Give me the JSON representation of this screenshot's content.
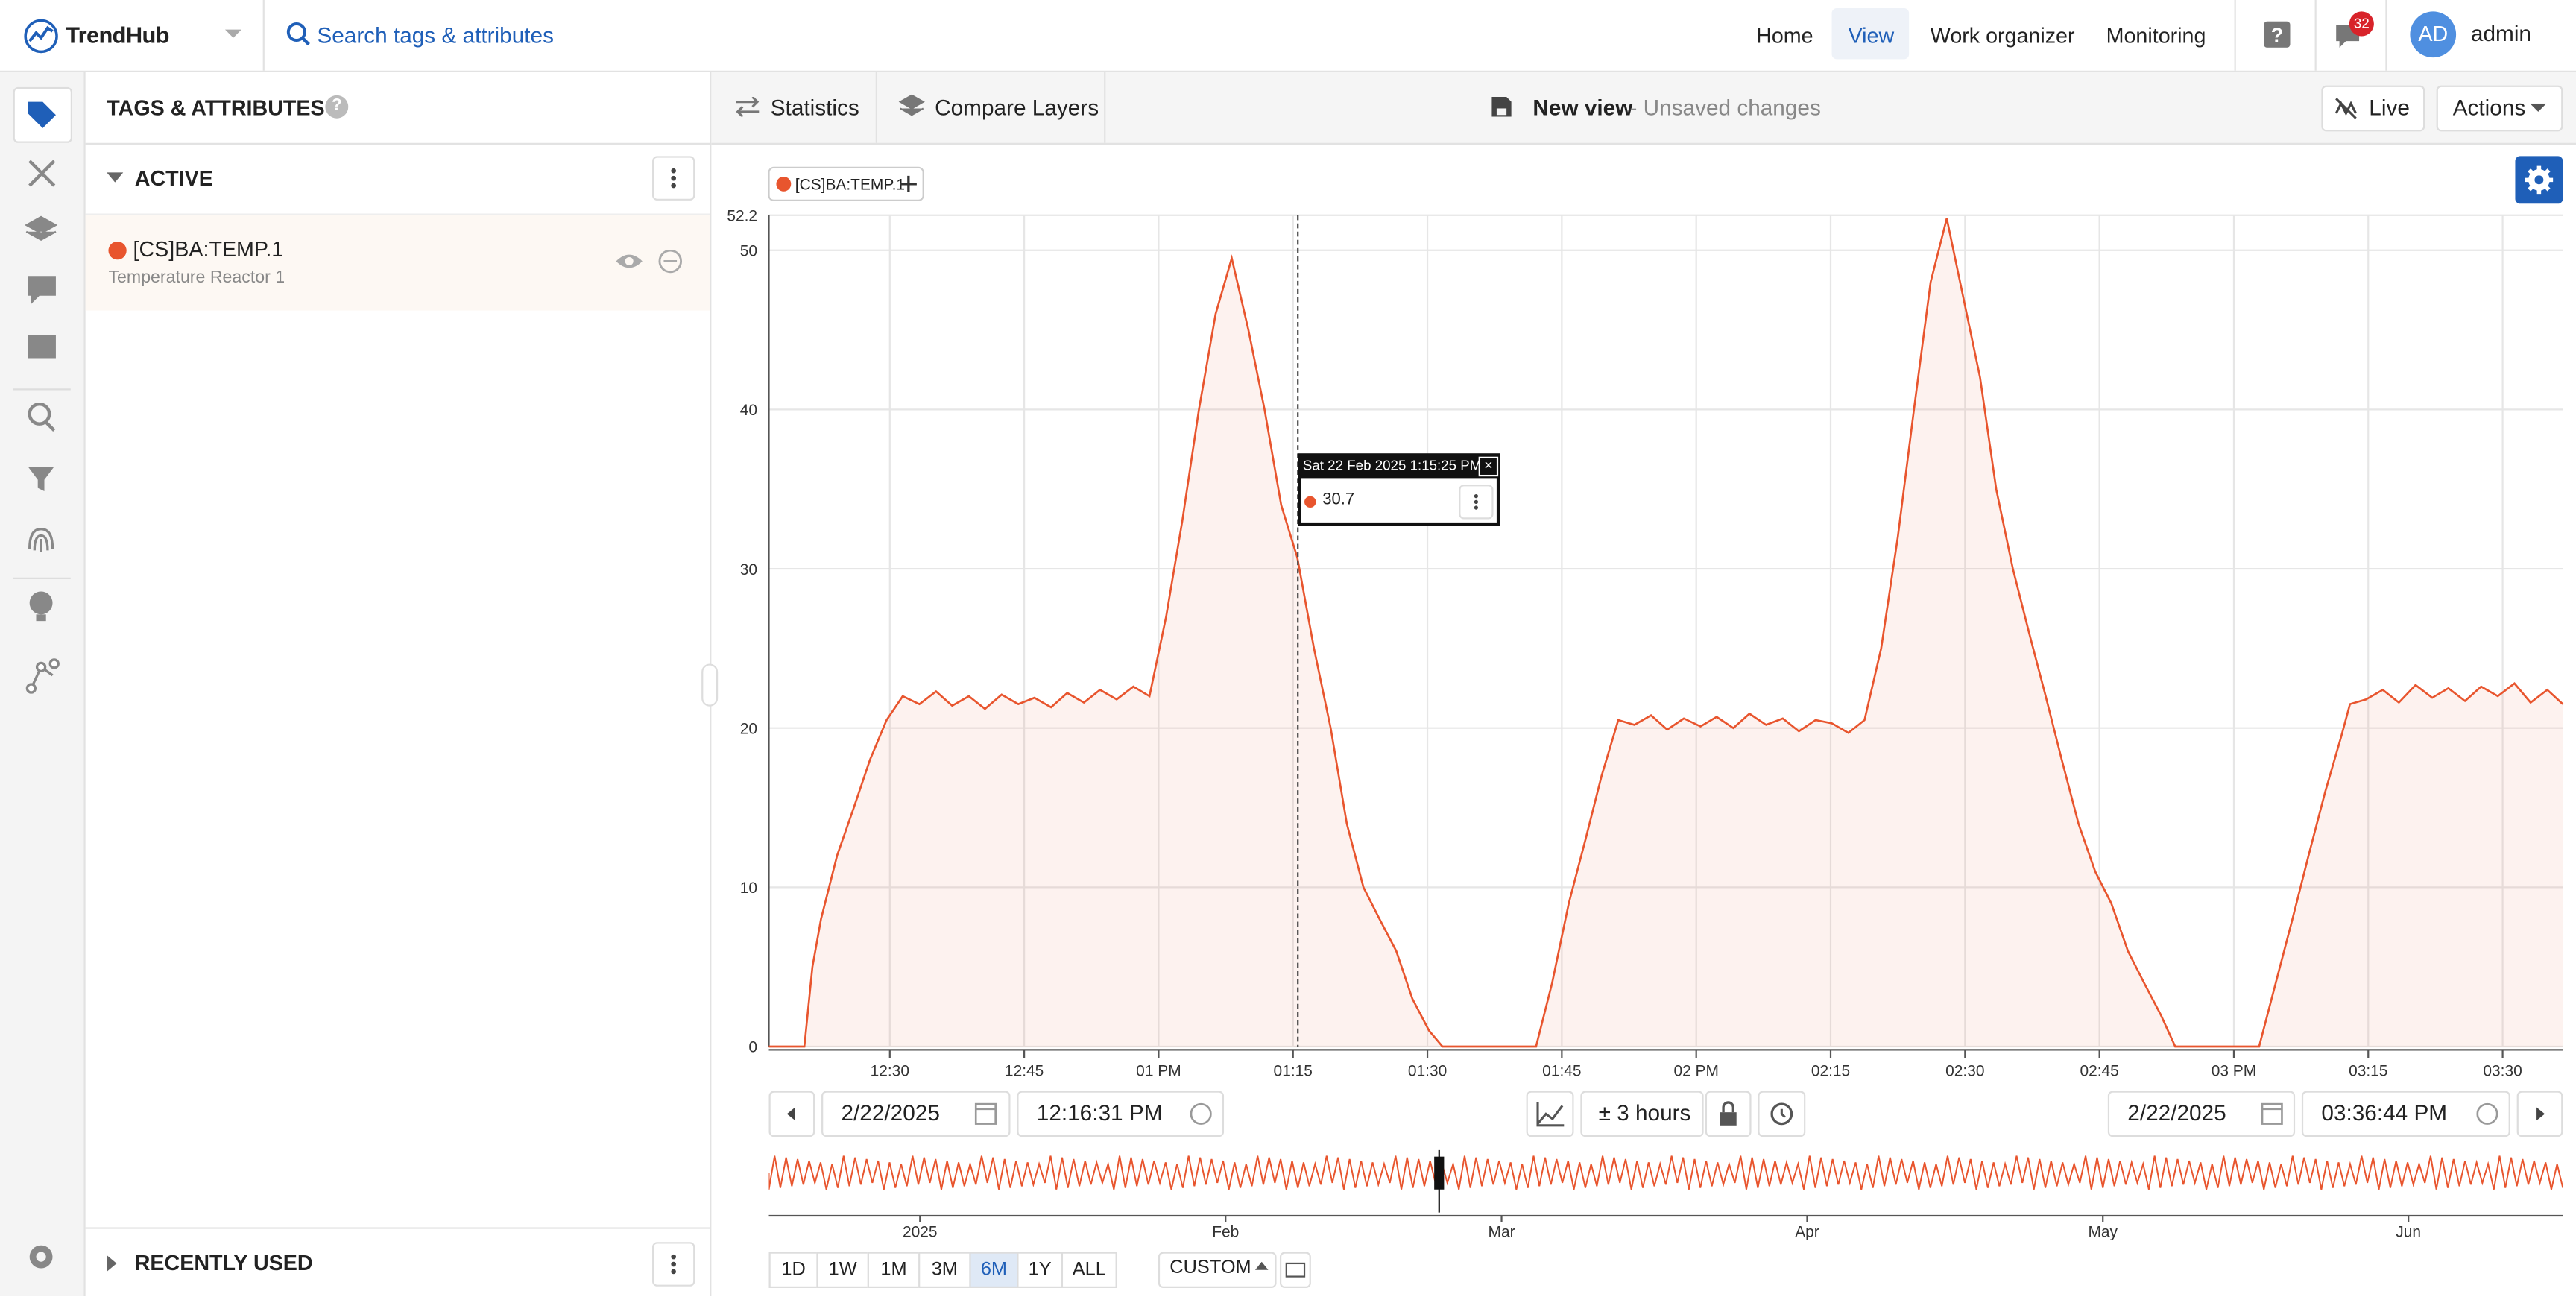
{
  "header": {
    "brand": "TrendHub",
    "search": "Search tags & attributes",
    "nav": [
      "Home",
      "View",
      "Work organizer",
      "Monitoring"
    ],
    "notifications": "32",
    "avatar": "AD",
    "user": "admin"
  },
  "panel": {
    "title": "TAGS & ATTRIBUTES",
    "active": "ACTIVE",
    "tag": {
      "name": "[CS]BA:TEMP.1",
      "description": "Temperature Reactor 1"
    },
    "recent": "RECENTLY USED"
  },
  "toolbar": {
    "statistics": "Statistics",
    "compare": "Compare Layers",
    "view_name": "New view",
    "view_status": "- Unsaved changes",
    "live": "Live",
    "actions": "Actions"
  },
  "chart_data": {
    "type": "area",
    "x": [
      12.275,
      12.341,
      12.356,
      12.372,
      12.402,
      12.433,
      12.463,
      12.494,
      12.524,
      12.555,
      12.586,
      12.616,
      12.647,
      12.677,
      12.708,
      12.739,
      12.769,
      12.8,
      12.83,
      12.861,
      12.891,
      12.922,
      12.953,
      12.983,
      13.014,
      13.044,
      13.075,
      13.106,
      13.136,
      13.167,
      13.197,
      13.228,
      13.258,
      13.289,
      13.32,
      13.35,
      13.381,
      13.411,
      13.442,
      13.472,
      13.503,
      13.528,
      13.702,
      13.732,
      13.763,
      13.794,
      13.824,
      13.855,
      13.885,
      13.916,
      13.946,
      13.977,
      14.008,
      14.038,
      14.069,
      14.099,
      14.13,
      14.161,
      14.191,
      14.222,
      14.252,
      14.283,
      14.313,
      14.344,
      14.375,
      14.405,
      14.436,
      14.466,
      14.497,
      14.528,
      14.558,
      14.589,
      14.619,
      14.65,
      14.68,
      14.711,
      14.742,
      14.772,
      14.803,
      14.833,
      14.864,
      14.891,
      15.047,
      15.078,
      15.109,
      15.139,
      15.17,
      15.2,
      15.216,
      15.246,
      15.277,
      15.307,
      15.338,
      15.369,
      15.399,
      15.43,
      15.46,
      15.491,
      15.522,
      15.552,
      15.583,
      15.612
    ],
    "series": [
      {
        "name": "[CS]BA:TEMP.1",
        "color": "#e8552e",
        "values": [
          0,
          0,
          5,
          8,
          12,
          15,
          18,
          20.5,
          22,
          21.5,
          22.3,
          21.4,
          22,
          21.2,
          22.1,
          21.5,
          21.9,
          21.3,
          22.2,
          21.6,
          22.4,
          21.8,
          22.6,
          22,
          27,
          33,
          40,
          46,
          49.5,
          45,
          40,
          34,
          30.7,
          25,
          20,
          14,
          10,
          8,
          6,
          3,
          1,
          0,
          0,
          4,
          9,
          13,
          17,
          20.5,
          20.2,
          20.8,
          19.9,
          20.6,
          20.1,
          20.7,
          20,
          20.9,
          20.2,
          20.6,
          19.8,
          20.5,
          20.3,
          19.7,
          20.5,
          25,
          32,
          40,
          48,
          52,
          47,
          42,
          35,
          30,
          26,
          22,
          18,
          14,
          11,
          9,
          6,
          4,
          2,
          0,
          0,
          4,
          8,
          12,
          16,
          19.5,
          21.5,
          21.8,
          22.4,
          21.6,
          22.7,
          21.9,
          22.5,
          21.7,
          22.6,
          22,
          22.8,
          21.6,
          22.4,
          21.5
        ]
      }
    ],
    "xlim": [
      12.275,
      15.612
    ],
    "xticks": [
      {
        "value": 12.5,
        "label": "12:30"
      },
      {
        "value": 12.75,
        "label": "12:45"
      },
      {
        "value": 13,
        "label": "01 PM"
      },
      {
        "value": 13.25,
        "label": "01:15"
      },
      {
        "value": 13.5,
        "label": "01:30"
      },
      {
        "value": 13.75,
        "label": "01:45"
      },
      {
        "value": 14,
        "label": "02 PM"
      },
      {
        "value": 14.25,
        "label": "02:15"
      },
      {
        "value": 14.5,
        "label": "02:30"
      },
      {
        "value": 14.75,
        "label": "02:45"
      },
      {
        "value": 15,
        "label": "03 PM"
      },
      {
        "value": 15.25,
        "label": "03:15"
      },
      {
        "value": 15.5,
        "label": "03:30"
      }
    ],
    "ylim": [
      0,
      52.2
    ],
    "yticks": [
      0,
      10,
      20,
      30,
      40,
      50,
      52.2
    ],
    "grid": true
  },
  "tooltip": {
    "time": "Sat 22 Feb 2025 1:15:25 PM",
    "value": "30.7"
  },
  "controls": {
    "start_date": "2/22/2025",
    "start_time": "12:16:31 PM",
    "window": "± 3 hours",
    "end_date": "2/22/2025",
    "end_time": "03:36:44 PM"
  },
  "navigator": {
    "labels": [
      "2025",
      "Feb",
      "Mar",
      "Apr",
      "May",
      "Jun"
    ]
  },
  "ranges": {
    "buttons": [
      "1D",
      "1W",
      "1M",
      "3M",
      "6M",
      "1Y",
      "ALL"
    ],
    "selected": "6M",
    "custom": "CUSTOM"
  }
}
